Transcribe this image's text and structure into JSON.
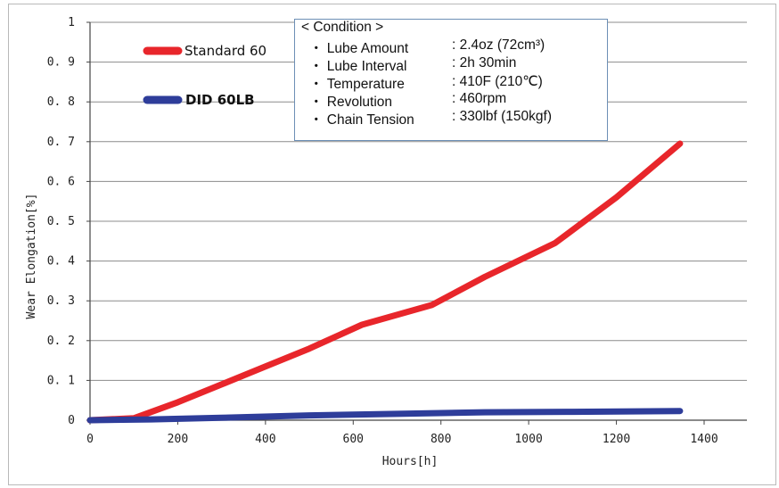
{
  "chart_data": {
    "type": "line",
    "xlabel": "Hours[h]",
    "ylabel": "Wear Elongation[%]",
    "xlim": [
      0,
      1400
    ],
    "ylim": [
      0,
      1
    ],
    "x_ticks": [
      "0",
      "200",
      "400",
      "600",
      "800",
      "1000",
      "1200",
      "1400"
    ],
    "y_ticks": [
      "0",
      "0. 1",
      "0. 2",
      "0. 3",
      "0. 4",
      "0. 5",
      "0. 6",
      "0. 7",
      "0. 8",
      "0. 9",
      "1"
    ],
    "grid": "horizontal",
    "legend_position": "top-left",
    "series": [
      {
        "name": "Standard 60",
        "color": "#e8262b",
        "points": [
          [
            0,
            0
          ],
          [
            100,
            0.005
          ],
          [
            200,
            0.045
          ],
          [
            300,
            0.09
          ],
          [
            400,
            0.135
          ],
          [
            500,
            0.18
          ],
          [
            620,
            0.24
          ],
          [
            780,
            0.29
          ],
          [
            900,
            0.36
          ],
          [
            1060,
            0.445
          ],
          [
            1200,
            0.56
          ],
          [
            1345,
            0.695
          ]
        ]
      },
      {
        "name": "DID 60LB",
        "color": "#2e3d9a",
        "points": [
          [
            0,
            0
          ],
          [
            140,
            0.002
          ],
          [
            300,
            0.006
          ],
          [
            500,
            0.012
          ],
          [
            700,
            0.016
          ],
          [
            900,
            0.02
          ],
          [
            1100,
            0.021
          ],
          [
            1345,
            0.023
          ]
        ]
      }
    ]
  },
  "condition_box": {
    "title": "< Condition >",
    "rows": [
      {
        "label": "・ Lube Amount",
        "value": ": 2.4oz (72cm³)"
      },
      {
        "label": "・ Lube Interval",
        "value": ": 2h 30min"
      },
      {
        "label": "・ Temperature",
        "value": ": 410F (210℃)"
      },
      {
        "label": "・ Revolution",
        "value": ": 460rpm"
      },
      {
        "label": "・ Chain Tension",
        "value": ": 330lbf (150kgf)"
      }
    ]
  }
}
